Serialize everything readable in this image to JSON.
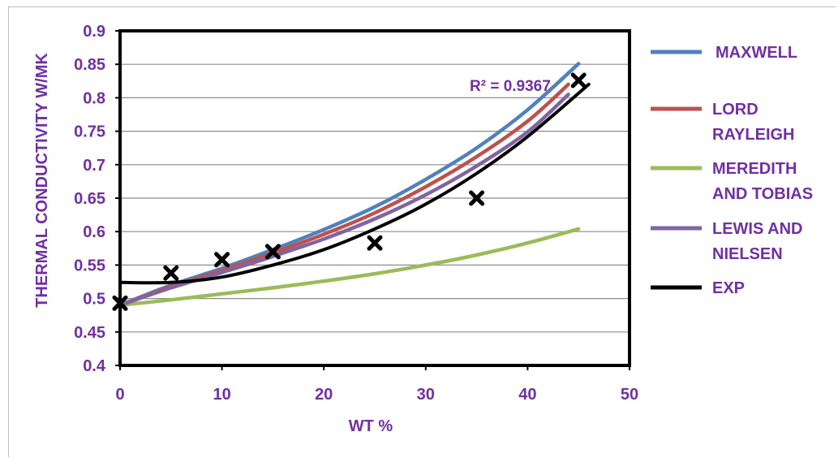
{
  "chart_data": {
    "type": "line",
    "title": "",
    "xlabel": "WT %",
    "ylabel": "THERMAL CONDUCTIVITY W/MK",
    "xlim": [
      0,
      50
    ],
    "ylim": [
      0.4,
      0.9
    ],
    "x_ticks": [
      "0",
      "10",
      "20",
      "30",
      "40",
      "50"
    ],
    "y_ticks": [
      "0.4",
      "0.45",
      "0.5",
      "0.55",
      "0.6",
      "0.65",
      "0.7",
      "0.75",
      "0.8",
      "0.85",
      "0.9"
    ],
    "grid": "horizontal",
    "legend_position": "right",
    "annotation": "R² = 0.9367",
    "series": [
      {
        "name": "MAXWELL",
        "color": "#4f81bd",
        "x": [
          0,
          5,
          10,
          15,
          20,
          25,
          30,
          35,
          40,
          45
        ],
        "y": [
          0.49,
          0.52,
          0.545,
          0.573,
          0.603,
          0.637,
          0.678,
          0.725,
          0.782,
          0.851
        ]
      },
      {
        "name": "LORD RAYLEIGH",
        "color": "#c0504d",
        "x": [
          0,
          5,
          10,
          15,
          20,
          25,
          30,
          35,
          40,
          44
        ],
        "y": [
          0.49,
          0.518,
          0.542,
          0.568,
          0.596,
          0.628,
          0.667,
          0.712,
          0.765,
          0.82
        ]
      },
      {
        "name": "MEREDITH AND TOBIAS",
        "color": "#9bbb59",
        "x": [
          0,
          5,
          10,
          15,
          20,
          25,
          30,
          35,
          40,
          45
        ],
        "y": [
          0.49,
          0.498,
          0.507,
          0.516,
          0.526,
          0.537,
          0.55,
          0.565,
          0.583,
          0.604
        ]
      },
      {
        "name": "LEWIS AND NIELSEN",
        "color": "#8064a2",
        "x": [
          0,
          5,
          10,
          15,
          20,
          25,
          30,
          35,
          40,
          44
        ],
        "y": [
          0.49,
          0.516,
          0.539,
          0.563,
          0.589,
          0.619,
          0.655,
          0.698,
          0.749,
          0.805
        ]
      },
      {
        "name": "EXP",
        "color": "#000000",
        "x": [
          0,
          5,
          10,
          15,
          20,
          25,
          30,
          35,
          40,
          46
        ],
        "y": [
          0.524,
          0.524,
          0.532,
          0.55,
          0.573,
          0.604,
          0.641,
          0.687,
          0.742,
          0.82
        ]
      }
    ],
    "points": {
      "name": "EXP data",
      "x": [
        0,
        5,
        10,
        15,
        25,
        35,
        45
      ],
      "y": [
        0.493,
        0.538,
        0.558,
        0.57,
        0.583,
        0.65,
        0.826
      ]
    }
  }
}
